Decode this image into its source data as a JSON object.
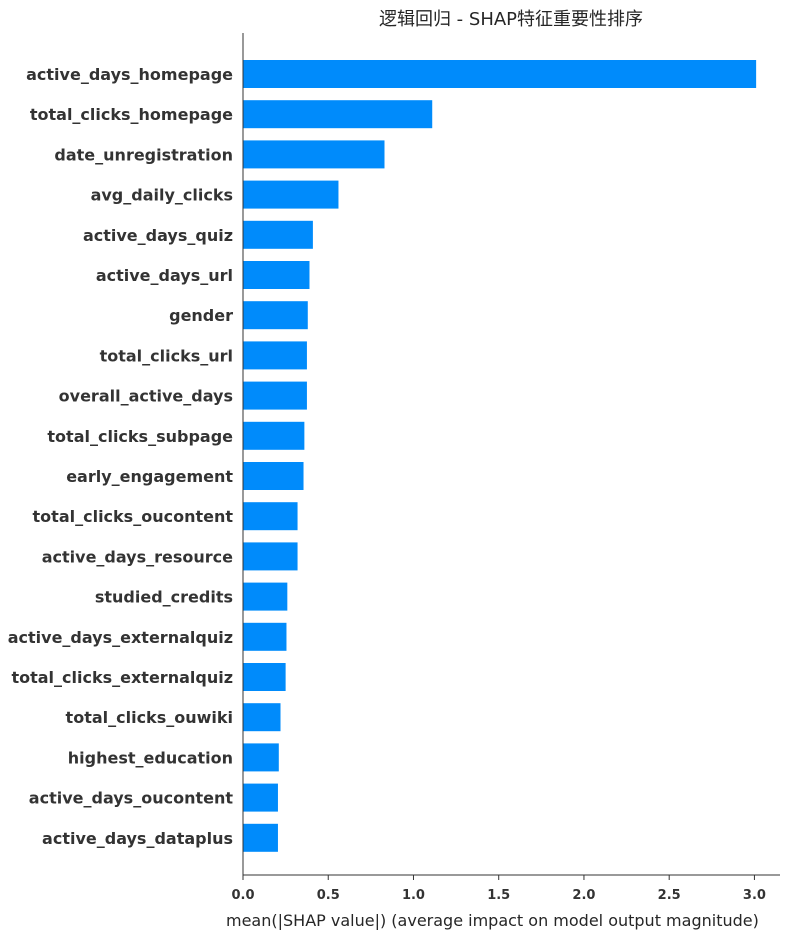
{
  "chart_data": {
    "type": "bar",
    "orientation": "horizontal",
    "title": "逻辑回归 - SHAP特征重要性排序",
    "xlabel": "mean(|SHAP value|) (average impact on model output magnitude)",
    "ylabel": "",
    "xlim": [
      0,
      3.15
    ],
    "xticks": [
      "0.0",
      "0.5",
      "1.0",
      "1.5",
      "2.0",
      "2.5",
      "3.0"
    ],
    "xtick_values": [
      0,
      0.5,
      1.0,
      1.5,
      2.0,
      2.5,
      3.0
    ],
    "bar_color": "#008bfb",
    "grid": false,
    "categories": [
      "active_days_homepage",
      "total_clicks_homepage",
      "date_unregistration",
      "avg_daily_clicks",
      "active_days_quiz",
      "active_days_url",
      "gender",
      "total_clicks_url",
      "overall_active_days",
      "total_clicks_subpage",
      "early_engagement",
      "total_clicks_oucontent",
      "active_days_resource",
      "studied_credits",
      "active_days_externalquiz",
      "total_clicks_externalquiz",
      "total_clicks_ouwiki",
      "highest_education",
      "active_days_oucontent",
      "active_days_dataplus"
    ],
    "values": [
      3.01,
      1.11,
      0.83,
      0.56,
      0.41,
      0.39,
      0.38,
      0.375,
      0.375,
      0.36,
      0.355,
      0.32,
      0.32,
      0.26,
      0.255,
      0.25,
      0.22,
      0.21,
      0.205,
      0.205
    ]
  }
}
